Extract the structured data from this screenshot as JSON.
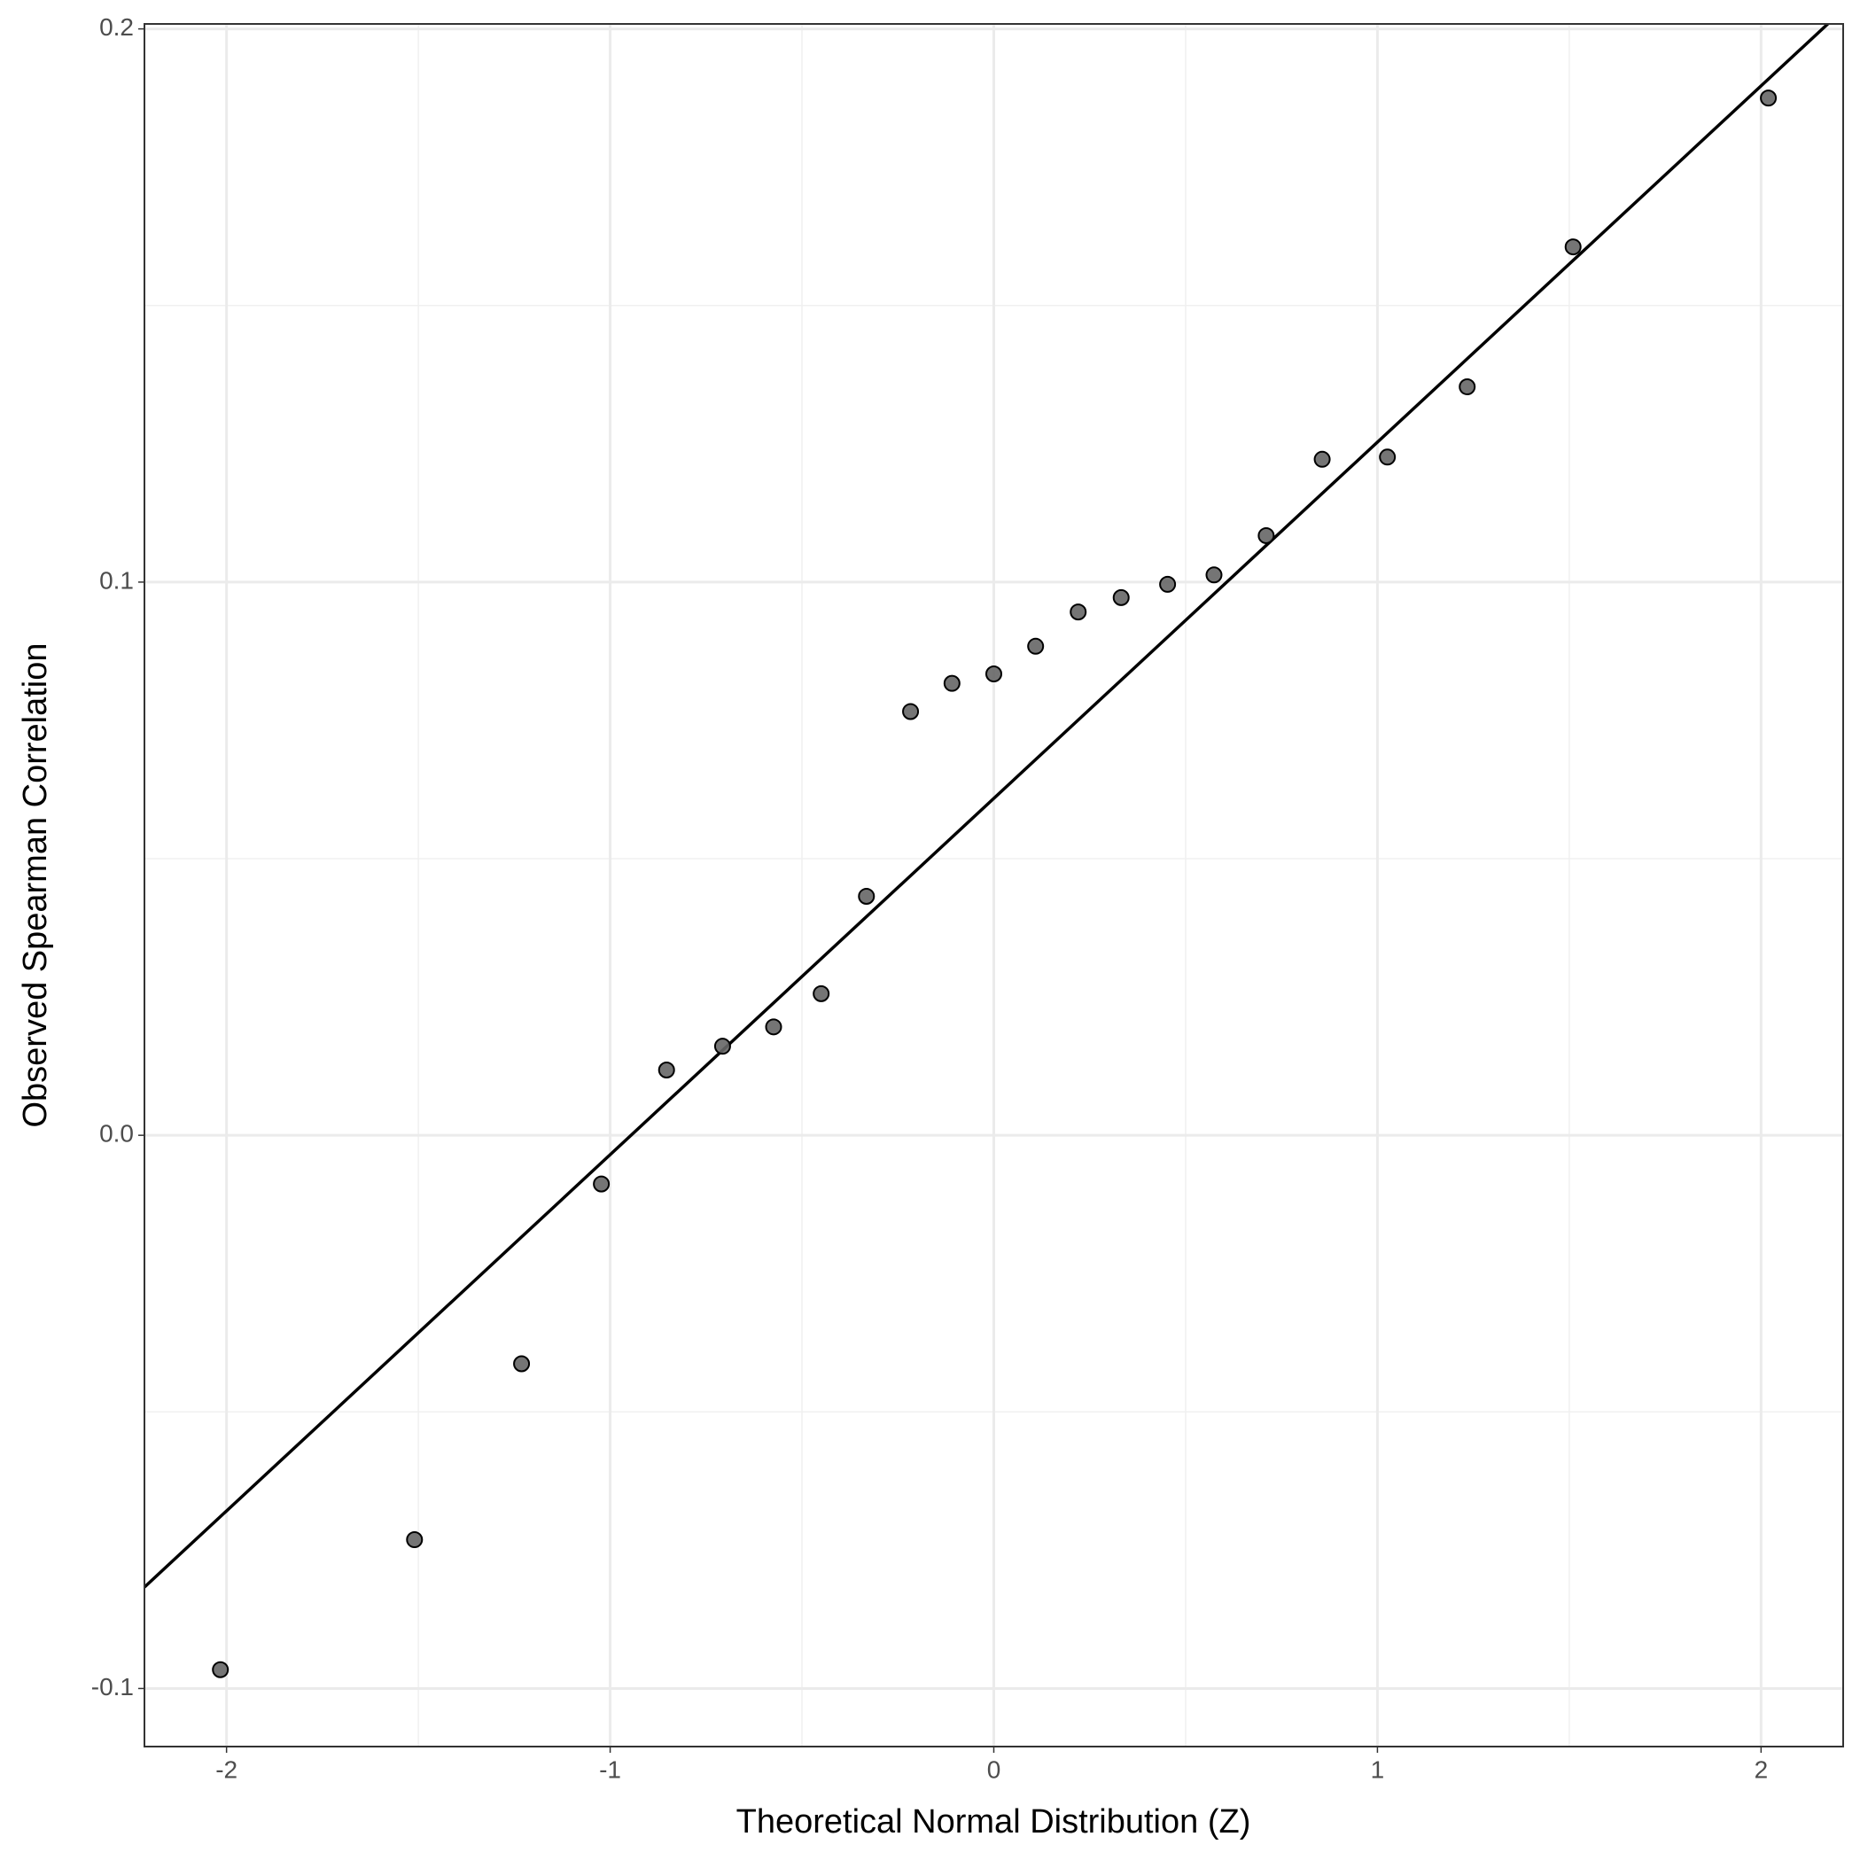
{
  "chart_data": {
    "type": "scatter",
    "x_label": "Theoretical Normal Distribution (Z)",
    "y_label": "Observed Spearman Correlation",
    "x": [
      -2.016,
      -1.51,
      -1.231,
      -1.023,
      -0.853,
      -0.707,
      -0.574,
      -0.45,
      -0.332,
      -0.217,
      -0.109,
      0,
      0.109,
      0.22,
      0.332,
      0.453,
      0.574,
      0.71,
      0.856,
      1.026,
      1.234,
      1.51,
      2.019
    ],
    "values": [
      -0.0966,
      -0.0731,
      -0.0413,
      -0.0088,
      0.0118,
      0.0161,
      0.0196,
      0.0256,
      0.0432,
      0.0766,
      0.0817,
      0.0834,
      0.0884,
      0.0946,
      0.0972,
      0.0996,
      0.1013,
      0.1084,
      0.1222,
      0.1226,
      0.1353,
      0.1606,
      0.1875
    ],
    "color": "#666666",
    "reference_line": {
      "intercept": 0.0609,
      "slope": 0.0644,
      "color": "#000000"
    },
    "xlim": [
      -2.214,
      2.214
    ],
    "ylim": [
      -0.1105,
      0.2009
    ],
    "xticks": [
      -2,
      -1,
      0,
      1,
      2
    ],
    "yticks": [
      -0.1,
      {
        "value": 0,
        "label": "0.0"
      },
      0.1,
      0.2
    ],
    "x_minor_grid": [
      -1.5,
      -0.5,
      0.5,
      1.5
    ],
    "y_minor_grid": [
      -0.05,
      0.05,
      0.15
    ],
    "grid": true
  }
}
